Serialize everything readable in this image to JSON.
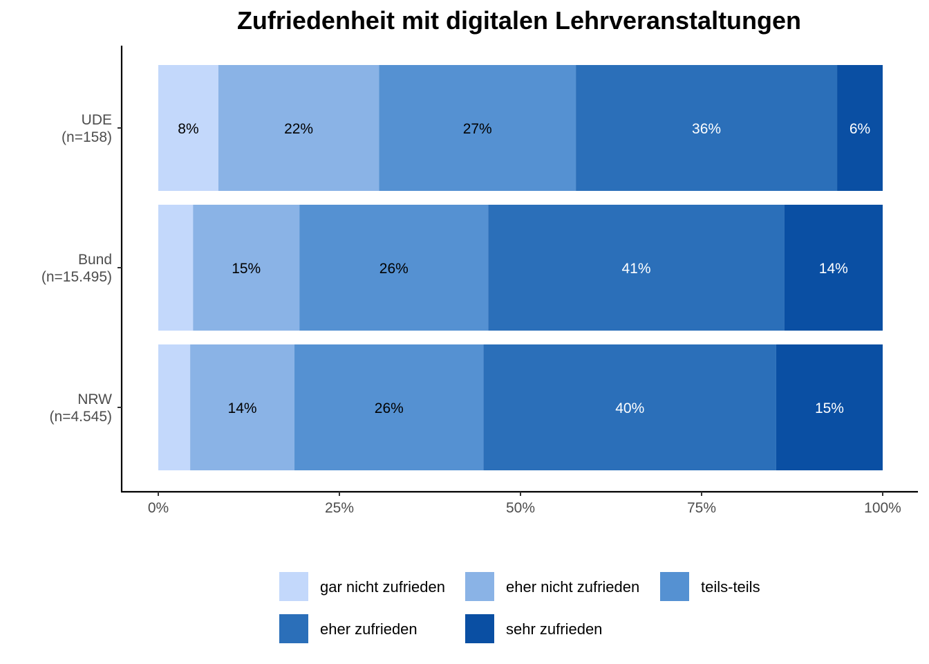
{
  "chart_data": {
    "type": "bar",
    "orientation": "horizontal",
    "stacked": true,
    "normalized": true,
    "title": "Zufriedenheit mit digitalen Lehrveranstaltungen",
    "xlabel": "",
    "ylabel": "",
    "categories": [
      {
        "label": "UDE",
        "sublabel": "(n=158)"
      },
      {
        "label": "Bund",
        "sublabel": "(n=15.495)"
      },
      {
        "label": "NRW",
        "sublabel": "(n=4.545)"
      }
    ],
    "series": [
      {
        "name": "gar nicht zufrieden",
        "color": "#c3d8fb",
        "label_color": "#000000",
        "values": [
          8.3,
          4.8,
          4.4
        ],
        "labels": [
          "8%",
          "",
          ""
        ]
      },
      {
        "name": "eher nicht zufrieden",
        "color": "#8ab3e6",
        "label_color": "#000000",
        "values": [
          22.2,
          14.7,
          14.4
        ],
        "labels": [
          "22%",
          "15%",
          "14%"
        ]
      },
      {
        "name": "teils-teils",
        "color": "#5591d2",
        "label_color": "#000000",
        "values": [
          27.2,
          26.1,
          26.1
        ],
        "labels": [
          "27%",
          "26%",
          "26%"
        ]
      },
      {
        "name": "eher zufrieden",
        "color": "#2b6fb9",
        "label_color": "#ffffff",
        "values": [
          36.1,
          40.9,
          40.4
        ],
        "labels": [
          "36%",
          "41%",
          "40%"
        ]
      },
      {
        "name": "sehr zufrieden",
        "color": "#0a4fa3",
        "label_color": "#ffffff",
        "values": [
          6.3,
          13.6,
          14.7
        ],
        "labels": [
          "6%",
          "14%",
          "15%"
        ]
      }
    ],
    "xlim": [
      0,
      100
    ],
    "xticks": [
      0,
      25,
      50,
      75,
      100
    ],
    "xtick_labels": [
      "0%",
      "25%",
      "50%",
      "75%",
      "100%"
    ],
    "grid": false,
    "legend_position": "bottom"
  }
}
